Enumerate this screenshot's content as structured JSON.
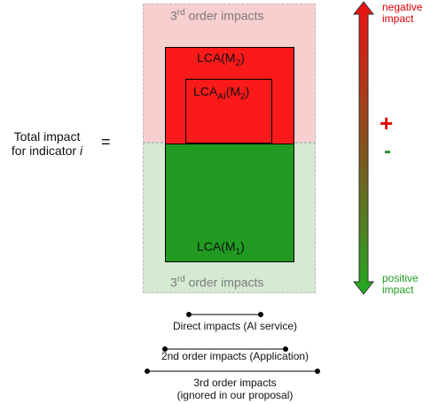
{
  "diagram": {
    "left_label_line1": "Total impact",
    "left_label_line2_prefix": "for indicator ",
    "left_label_line2_var": "i",
    "equals": "=",
    "third_order_top": {
      "main": "3",
      "sup": "rd",
      "rest": " order impacts"
    },
    "third_order_bottom": {
      "main": "3",
      "sup": "rd",
      "rest": " order impacts"
    },
    "lca_m2": {
      "prefix": "LCA(M",
      "sub": "2",
      "suffix": ")"
    },
    "lca_ai_m2": {
      "prefix": "LCA",
      "sub": "AI",
      "mid": "(M",
      "sub2": "2",
      "suffix": ")"
    },
    "lca_m1": {
      "prefix": "LCA(M",
      "sub": "1",
      "suffix": ")"
    },
    "plus": "+",
    "minus": "-",
    "negative_line1": "negative",
    "negative_line2": "impact",
    "positive_line1": "positive",
    "positive_line2": "impact",
    "colors": {
      "red": "#fb1a1a",
      "green": "#209a20",
      "light_red": "#f8cfcf",
      "light_green": "#d4ebd1",
      "arrow_top": "#ee1111",
      "arrow_bottom": "#22aa22"
    }
  },
  "legend": {
    "direct": "Direct impacts (AI service)",
    "second": "2nd order impacts (Application)",
    "third_line1": "3rd order impacts",
    "third_line2": "(ignored in our proposal)"
  }
}
